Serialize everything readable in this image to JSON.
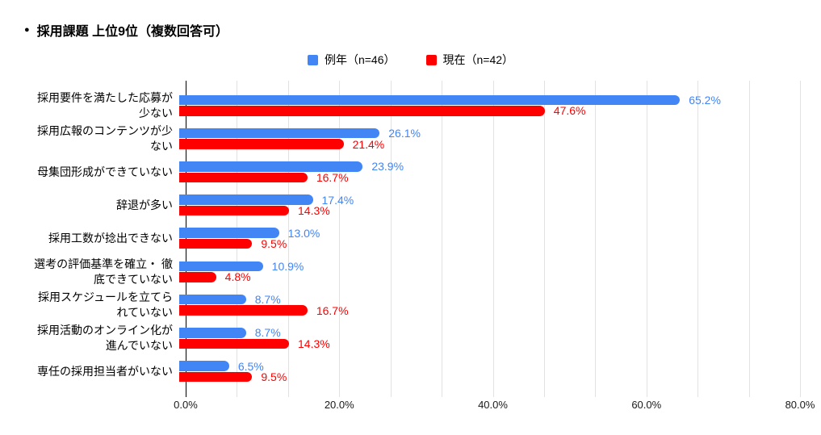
{
  "title": {
    "bullet": "●",
    "text": "採用課題 上位9位（複数回答可）"
  },
  "legend": [
    {
      "label": "例年（n=46）",
      "color": "#4285F4"
    },
    {
      "label": "現在（n=42）",
      "color": "#FF0000"
    }
  ],
  "colors": {
    "series_reinen": "#4285F4",
    "series_genzai": "#FF0000",
    "gridline": "#e2e2e2",
    "axis": "#000000"
  },
  "axis": {
    "min": 0,
    "max": 80,
    "tick_labels": [
      "0.0%",
      "20.0%",
      "40.0%",
      "60.0%",
      "80.0%"
    ],
    "tick_values": [
      0,
      20,
      40,
      60,
      80
    ],
    "minor_gridline_divisions": 12
  },
  "category_display": [
    "採用要件を満たした応募が\n少ない",
    "採用広報のコンテンツが少\nない",
    "母集団形成ができていない",
    "辞退が多い",
    "採用工数が捻出できない",
    "選考の評価基準を確立・ 徹\n底できていない",
    "採用スケジュールを立てら\nれていない",
    "採用活動のオンライン化が\n進んでいない",
    "専任の採用担当者がいない"
  ],
  "chart_data": {
    "type": "bar",
    "orientation": "horizontal",
    "title": "採用課題 上位9位（複数回答可）",
    "categories": [
      "採用要件を満たした応募が少ない",
      "採用広報のコンテンツが少ない",
      "母集団形成ができていない",
      "辞退が多い",
      "採用工数が捻出できない",
      "選考の評価基準を確立・ 徹底できていない",
      "採用スケジュールを立てられていない",
      "採用活動のオンライン化が進んでいない",
      "専任の採用担当者がいない"
    ],
    "series": [
      {
        "name": "例年（n=46）",
        "color": "#4285F4",
        "values": [
          65.2,
          26.1,
          23.9,
          17.4,
          13.0,
          10.9,
          8.7,
          8.7,
          6.5
        ],
        "labels": [
          "65.2%",
          "26.1%",
          "23.9%",
          "17.4%",
          "13.0%",
          "10.9%",
          "8.7%",
          "8.7%",
          "6.5%"
        ]
      },
      {
        "name": "現在（n=42）",
        "color": "#FF0000",
        "values": [
          47.6,
          21.4,
          16.7,
          14.3,
          9.5,
          4.8,
          16.7,
          14.3,
          9.5
        ],
        "labels": [
          "47.6%",
          "21.4%",
          "16.7%",
          "14.3%",
          "9.5%",
          "4.8%",
          "16.7%",
          "14.3%",
          "9.5%"
        ]
      }
    ],
    "xlim": [
      0,
      80
    ],
    "x_tick_labels": [
      "0.0%",
      "20.0%",
      "40.0%",
      "60.0%",
      "80.0%"
    ],
    "legend_position": "top",
    "grid": true,
    "bar_value_labels": true
  }
}
